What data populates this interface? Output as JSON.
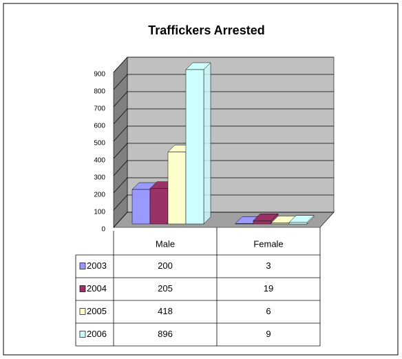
{
  "chart_data": {
    "type": "bar3d",
    "title": "Traffickers Arrested",
    "categories": [
      "Male",
      "Female"
    ],
    "series": [
      {
        "name": "2003",
        "color": "#9999ff",
        "values": [
          200,
          3
        ]
      },
      {
        "name": "2004",
        "color": "#993366",
        "values": [
          205,
          19
        ]
      },
      {
        "name": "2005",
        "color": "#ffffcc",
        "values": [
          418,
          6
        ]
      },
      {
        "name": "2006",
        "color": "#ccffff",
        "values": [
          896,
          9
        ]
      }
    ],
    "ylim": [
      0,
      900
    ],
    "yticks": [
      0,
      100,
      200,
      300,
      400,
      500,
      600,
      700,
      800,
      900
    ],
    "grid": true,
    "data_table": true
  }
}
